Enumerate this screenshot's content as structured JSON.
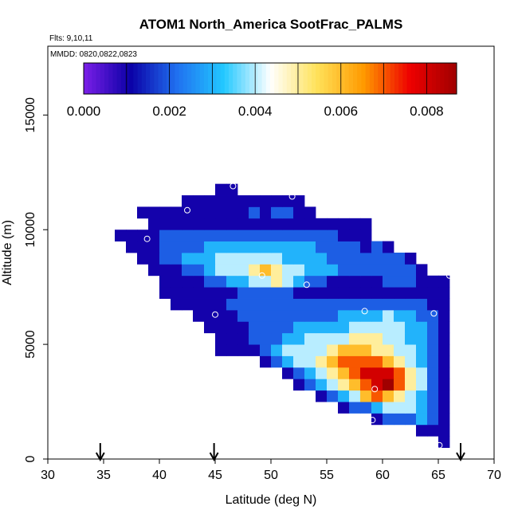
{
  "chart_data": {
    "type": "heatmap",
    "title": "ATOM1 North_America SootFrac_PALMS",
    "flights_note": "Flts: 9,10,11",
    "dates_note": "MMDD: 0820,0822,0823",
    "xlabel": "Latitude (deg N)",
    "ylabel": "Altitude (m)",
    "xlim": [
      30,
      70
    ],
    "ylim": [
      0,
      18000
    ],
    "x_ticks": [
      30,
      35,
      40,
      45,
      50,
      55,
      60,
      65,
      70
    ],
    "y_ticks": [
      0,
      5000,
      10000,
      15000
    ],
    "colorbar": {
      "min": 0.0,
      "max": 0.0087,
      "ticks": [
        0.0,
        0.002,
        0.004,
        0.006,
        0.008
      ],
      "tick_labels": [
        "0.000",
        "0.002",
        "0.004",
        "0.006",
        "0.008"
      ],
      "colors": [
        "#7b1fe8",
        "#0b00a6",
        "#2070f0",
        "#22c8ff",
        "#ffffff",
        "#ffe25a",
        "#ff9a00",
        "#ee0000",
        "#a00000"
      ]
    },
    "cell_size": {
      "lat": 1,
      "alt": 500
    },
    "row_alt_start": 500,
    "row_value_strings": [
      "65:1",
      "63:1,64:1,65:1",
      "59:1,60:2,61:2,62:2,63:3,64:2,65:1",
      "56:1,57:2,58:2,59:3,60:4,61:4,62:4,63:3,64:2,65:1",
      "54:1,55:2,56:3,57:4,58:6,59:7,60:6,61:5,62:4,63:3,64:2,65:1",
      "52:1,53:2,54:3,55:4,56:5,57:6,58:7,59:8,60:9,61:7,62:5,63:4,64:2,65:1",
      "51:1,52:2,53:3,54:4,55:5,56:6,57:7,58:8,59:8,60:8,61:7,62:5,63:4,64:2,65:1",
      "49:1,50:2,51:3,52:4,53:4,54:5,55:6,56:7,57:7,58:7,59:7,60:6,61:5,62:4,63:3,64:2,65:1",
      "45:1,46:1,47:1,48:1,49:2,50:3,51:4,52:4,53:4,54:4,55:5,56:6,57:6,58:6,59:5,60:5,61:4,62:4,63:3,64:2,65:1",
      "45:1,46:1,47:1,48:2,49:2,50:2,51:3,52:3,53:4,54:4,55:4,56:4,57:5,58:5,59:5,60:4,61:4,62:3,63:3,64:2,65:1",
      "44:1,45:1,46:1,47:1,48:2,49:2,50:2,51:2,52:3,53:3,54:3,55:3,56:3,57:4,58:4,59:4,60:4,61:4,62:3,63:3,64:2,65:1",
      "43:1,44:1,45:1,46:1,47:2,48:2,49:2,50:2,51:2,52:2,53:2,54:2,55:2,56:3,57:3,58:3,59:3,60:4,61:3,62:3,63:2,64:2,65:1",
      "41:1,42:1,43:1,44:1,45:1,46:2,47:2,48:2,49:2,50:2,51:2,52:2,53:2,54:2,55:2,56:2,57:2,58:2,59:2,60:2,61:2,62:2,63:2,64:1,65:1",
      "40:1,41:1,42:1,43:1,44:1,45:1,46:1,47:2,48:2,49:2,50:2,51:2,52:1,53:1,54:1,55:1,56:1,57:1,58:1,59:1,60:1,61:1,62:1,63:1,64:1,65:1",
      "40:1,41:1,42:1,43:1,44:2,45:2,46:3,47:3,48:4,49:4,50:5,51:4,52:3,53:2,54:2,55:1,56:1,57:1,58:1,59:1,60:2,61:2,62:2,63:1,64:1,65:1",
      "39:1,40:1,41:1,42:2,43:2,44:3,45:4,46:4,47:4,48:5,49:6,50:5,51:4,52:4,53:3,54:3,55:3,56:2,57:2,58:2,59:2,60:2,61:2,62:2,63:1",
      "38:1,39:1,40:2,41:2,42:3,43:3,44:3,45:4,46:4,47:4,48:4,49:4,50:4,51:3,52:3,53:3,54:3,55:2,56:2,57:2,58:2,59:2,60:2,61:2,62:1",
      "37:1,38:1,39:1,40:2,41:2,42:2,43:2,44:3,45:3,46:3,47:3,48:3,49:3,50:3,51:3,52:3,53:3,54:2,55:2,56:2,57:2,58:1,59:2,60:1",
      "36:1,37:1,38:1,39:1,40:2,41:2,42:2,43:2,44:2,45:2,46:2,47:2,48:2,49:2,50:2,51:2,52:2,53:2,54:2,55:2,56:1,57:1,58:1",
      "39:1,40:1,41:1,42:1,43:1,44:1,45:1,46:1,47:1,48:1,49:1,50:1,51:1,52:1,53:1,54:1,55:1,56:1,57:1,58:1",
      "38:1,39:1,40:1,41:1,42:1,43:1,44:1,45:1,46:1,47:1,48:2,49:1,50:2,51:2,52:1,53:1",
      "42:1,43:1,44:1,45:1,46:1,47:1,48:1,49:1,50:1,51:1,52:1",
      "45:1,46:1"
    ],
    "value_scale": 0.001,
    "sample_points": [
      [
        38.9,
        9600
      ],
      [
        42.5,
        10850
      ],
      [
        45.0,
        6300
      ],
      [
        45.9,
        4050
      ],
      [
        46.6,
        11900
      ],
      [
        49.2,
        8000
      ],
      [
        50.5,
        3200
      ],
      [
        51.9,
        11450
      ],
      [
        53.2,
        7600
      ],
      [
        58.4,
        6450
      ],
      [
        59.3,
        3050
      ],
      [
        59.1,
        1700
      ],
      [
        64.6,
        6350
      ],
      [
        65.1,
        600
      ],
      [
        66.0,
        8000
      ]
    ],
    "flight_markers_lat": [
      34.7,
      44.9,
      67.0
    ]
  }
}
